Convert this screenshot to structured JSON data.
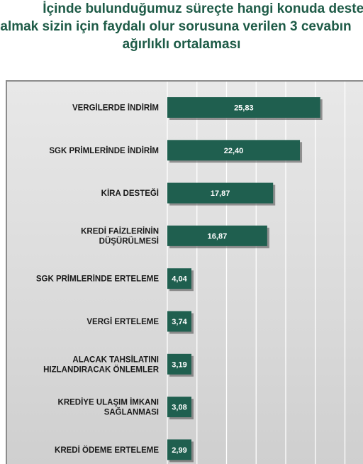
{
  "title": {
    "line1": "İçinde bulunduğumuz süreçte hangi konuda destek",
    "line2": "almak sizin için faydalı olur sorusuna verilen 3 cevabın",
    "line3": "ağırlıklı ortalaması"
  },
  "colors": {
    "bar": "#1f5f4f",
    "bar_shadow": "#4a4a4a",
    "title": "#1e5b47",
    "gridline": "#ffffff"
  },
  "chart_data": {
    "type": "bar",
    "orientation": "horizontal",
    "categories": [
      [
        "VERGİLERDE İNDİRİM"
      ],
      [
        "SGK PRİMLERİNDE İNDİRİM"
      ],
      [
        "KİRA DESTEĞİ"
      ],
      [
        "KREDİ FAİZLERİNİN",
        "DÜŞÜRÜLMESİ"
      ],
      [
        "SGK PRİMLERİNDE ERTELEME"
      ],
      [
        "VERGİ ERTELEME"
      ],
      [
        "ALACAK TAHSİLATINI",
        "HIZLANDIRACAK ÖNLEMLER"
      ],
      [
        "KREDİYE ULAŞIM İMKANI",
        "SAĞLANMASI"
      ],
      [
        "KREDİ ÖDEME ERTELEME"
      ]
    ],
    "values": [
      25.83,
      22.4,
      17.87,
      16.87,
      4.04,
      3.74,
      3.19,
      3.08,
      2.99
    ],
    "data_labels": [
      "25,83",
      "22,40",
      "17,87",
      "16,87",
      "4,04",
      "3,74",
      "3,19",
      "3,08",
      "2,99"
    ],
    "xlim": [
      0,
      30
    ],
    "grid": true,
    "legend": "none"
  }
}
